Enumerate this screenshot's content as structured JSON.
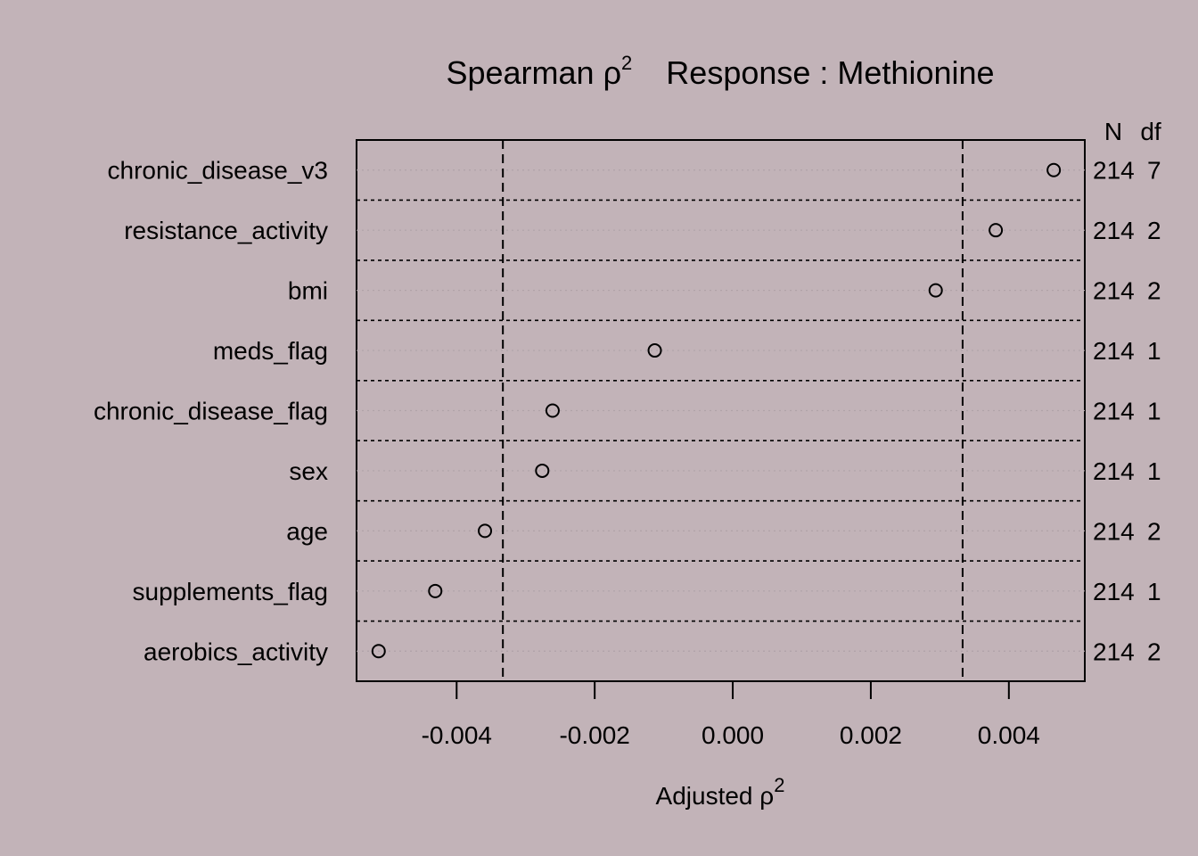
{
  "chart_data": {
    "type": "scatter",
    "title_prefix": "Spearman ρ",
    "title_exponent": "2",
    "title_suffix": "Response : Methionine",
    "xlabel_prefix": "Adjusted ρ",
    "xlabel_exponent": "2",
    "header_n": "N",
    "header_df": "df",
    "xlim": [
      -0.00545,
      0.0051
    ],
    "xticks": [
      "-0.004",
      "-0.002",
      "0.000",
      "0.002",
      "0.004"
    ],
    "xtick_values": [
      -0.004,
      -0.002,
      0.0,
      0.002,
      0.004
    ],
    "reference_lines": [
      -0.00333,
      0.00333
    ],
    "rows": [
      {
        "label": "chronic_disease_v3",
        "value": 0.00465,
        "n": "214",
        "df": "7"
      },
      {
        "label": "resistance_activity",
        "value": 0.00381,
        "n": "214",
        "df": "2"
      },
      {
        "label": "bmi",
        "value": 0.00294,
        "n": "214",
        "df": "2"
      },
      {
        "label": "meds_flag",
        "value": -0.00113,
        "n": "214",
        "df": "1"
      },
      {
        "label": "chronic_disease_flag",
        "value": -0.00261,
        "n": "214",
        "df": "1"
      },
      {
        "label": "sex",
        "value": -0.00276,
        "n": "214",
        "df": "1"
      },
      {
        "label": "age",
        "value": -0.00359,
        "n": "214",
        "df": "2"
      },
      {
        "label": "supplements_flag",
        "value": -0.00431,
        "n": "214",
        "df": "1"
      },
      {
        "label": "aerobics_activity",
        "value": -0.00513,
        "n": "214",
        "df": "2"
      }
    ],
    "grid": true,
    "colors": {
      "background": "#c2b3b8",
      "ink": "#000000",
      "gridline": "#b0a3a8"
    }
  }
}
